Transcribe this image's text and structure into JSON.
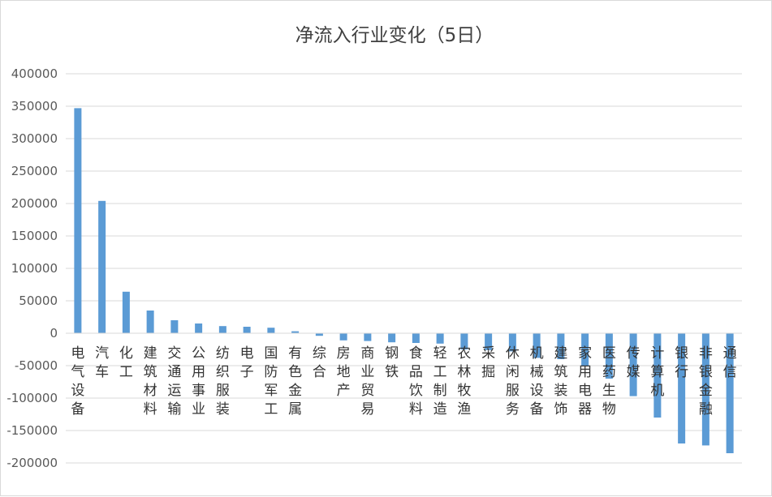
{
  "chart_data": {
    "type": "bar",
    "title": "净流入行业变化（5日）",
    "xlabel": "",
    "ylabel": "",
    "ylim": [
      -200000,
      400000
    ],
    "yticks": [
      400000,
      350000,
      300000,
      250000,
      200000,
      150000,
      100000,
      50000,
      0,
      -50000,
      -100000,
      -150000,
      -200000
    ],
    "ytick_labels": [
      "400000",
      "350000",
      "300000",
      "250000",
      "200000",
      "150000",
      "100000",
      "50000",
      "0",
      "-50000",
      "-100000",
      "-150000",
      "-200000"
    ],
    "grid": true,
    "legend": "none",
    "bar_color": "#5b9bd5",
    "categories": [
      "电气设备",
      "汽车",
      "化工",
      "建筑材料",
      "交通运输",
      "公用事业",
      "纺织服装",
      "电子",
      "国防军工",
      "有色金属",
      "综合",
      "房地产",
      "商业贸易",
      "钢铁",
      "食品饮料",
      "轻工制造",
      "农林牧渔",
      "采掘",
      "休闲服务",
      "机械设备",
      "建筑装饰",
      "家用电器",
      "医药生物",
      "传媒",
      "计算机",
      "银行",
      "非银金融",
      "通信"
    ],
    "values": [
      347000,
      204000,
      64000,
      35000,
      20000,
      15000,
      11000,
      10000,
      8500,
      3000,
      -4000,
      -11000,
      -12000,
      -14000,
      -15000,
      -16000,
      -25000,
      -26000,
      -28000,
      -38000,
      -40000,
      -50000,
      -70000,
      -97000,
      -130000,
      -170000,
      -173000,
      -185000
    ]
  }
}
